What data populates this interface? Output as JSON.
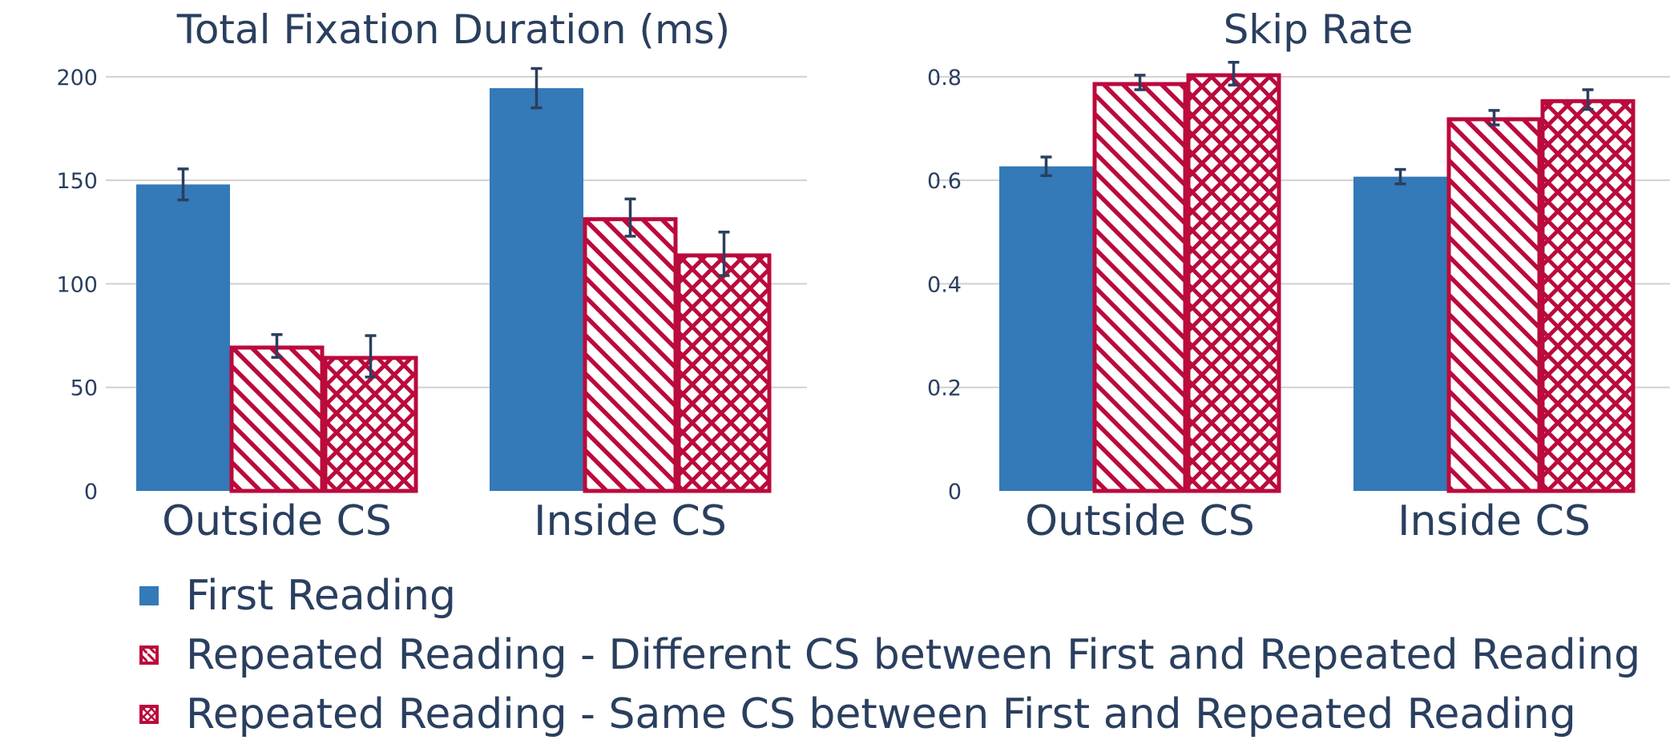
{
  "colors": {
    "first_reading": "#3479b8",
    "repeated": "#bb0a3c",
    "grid": "#d0d0d0",
    "text": "#2a3f5f",
    "error_bar": "#2a3f5f"
  },
  "legend": [
    {
      "label": "First Reading",
      "pattern": "solid"
    },
    {
      "label": "Repeated Reading - Different CS between First and Repeated Reading",
      "pattern": "diagonal"
    },
    {
      "label": "Repeated Reading - Same CS between First and Repeated Reading",
      "pattern": "crosshatch"
    }
  ],
  "chart_data": [
    {
      "type": "bar",
      "title": "Total Fixation Duration (ms)",
      "categories": [
        "Outside CS",
        "Inside CS"
      ],
      "ylim": [
        0,
        210
      ],
      "yticks": [
        0,
        50,
        100,
        150,
        200
      ],
      "ytick_labels": [
        "0",
        "50",
        "100",
        "150",
        "200"
      ],
      "grid": true,
      "series": [
        {
          "name": "First Reading",
          "values": [
            148,
            194.5
          ],
          "errors": [
            7.5,
            9.5
          ]
        },
        {
          "name": "Repeated Reading - Different CS between First and Repeated Reading",
          "values": [
            70,
            132
          ],
          "errors": [
            5.5,
            9
          ]
        },
        {
          "name": "Repeated Reading - Same CS between First and Repeated Reading",
          "values": [
            65,
            114.5
          ],
          "errors": [
            10,
            10.5
          ]
        }
      ]
    },
    {
      "type": "bar",
      "title": "Skip Rate",
      "categories": [
        "Outside CS",
        "Inside CS"
      ],
      "ylim": [
        0,
        0.84
      ],
      "yticks": [
        0,
        0.2,
        0.4,
        0.6,
        0.8
      ],
      "ytick_labels": [
        "0",
        "0.2",
        "0.4",
        "0.6",
        "0.8"
      ],
      "grid": true,
      "series": [
        {
          "name": "First Reading",
          "values": [
            0.627,
            0.607
          ],
          "errors": [
            0.018,
            0.014
          ]
        },
        {
          "name": "Repeated Reading - Different CS between First and Repeated Reading",
          "values": [
            0.789,
            0.721
          ],
          "errors": [
            0.014,
            0.014
          ]
        },
        {
          "name": "Repeated Reading - Same CS between First and Repeated Reading",
          "values": [
            0.806,
            0.756
          ],
          "errors": [
            0.022,
            0.019
          ]
        }
      ]
    }
  ]
}
